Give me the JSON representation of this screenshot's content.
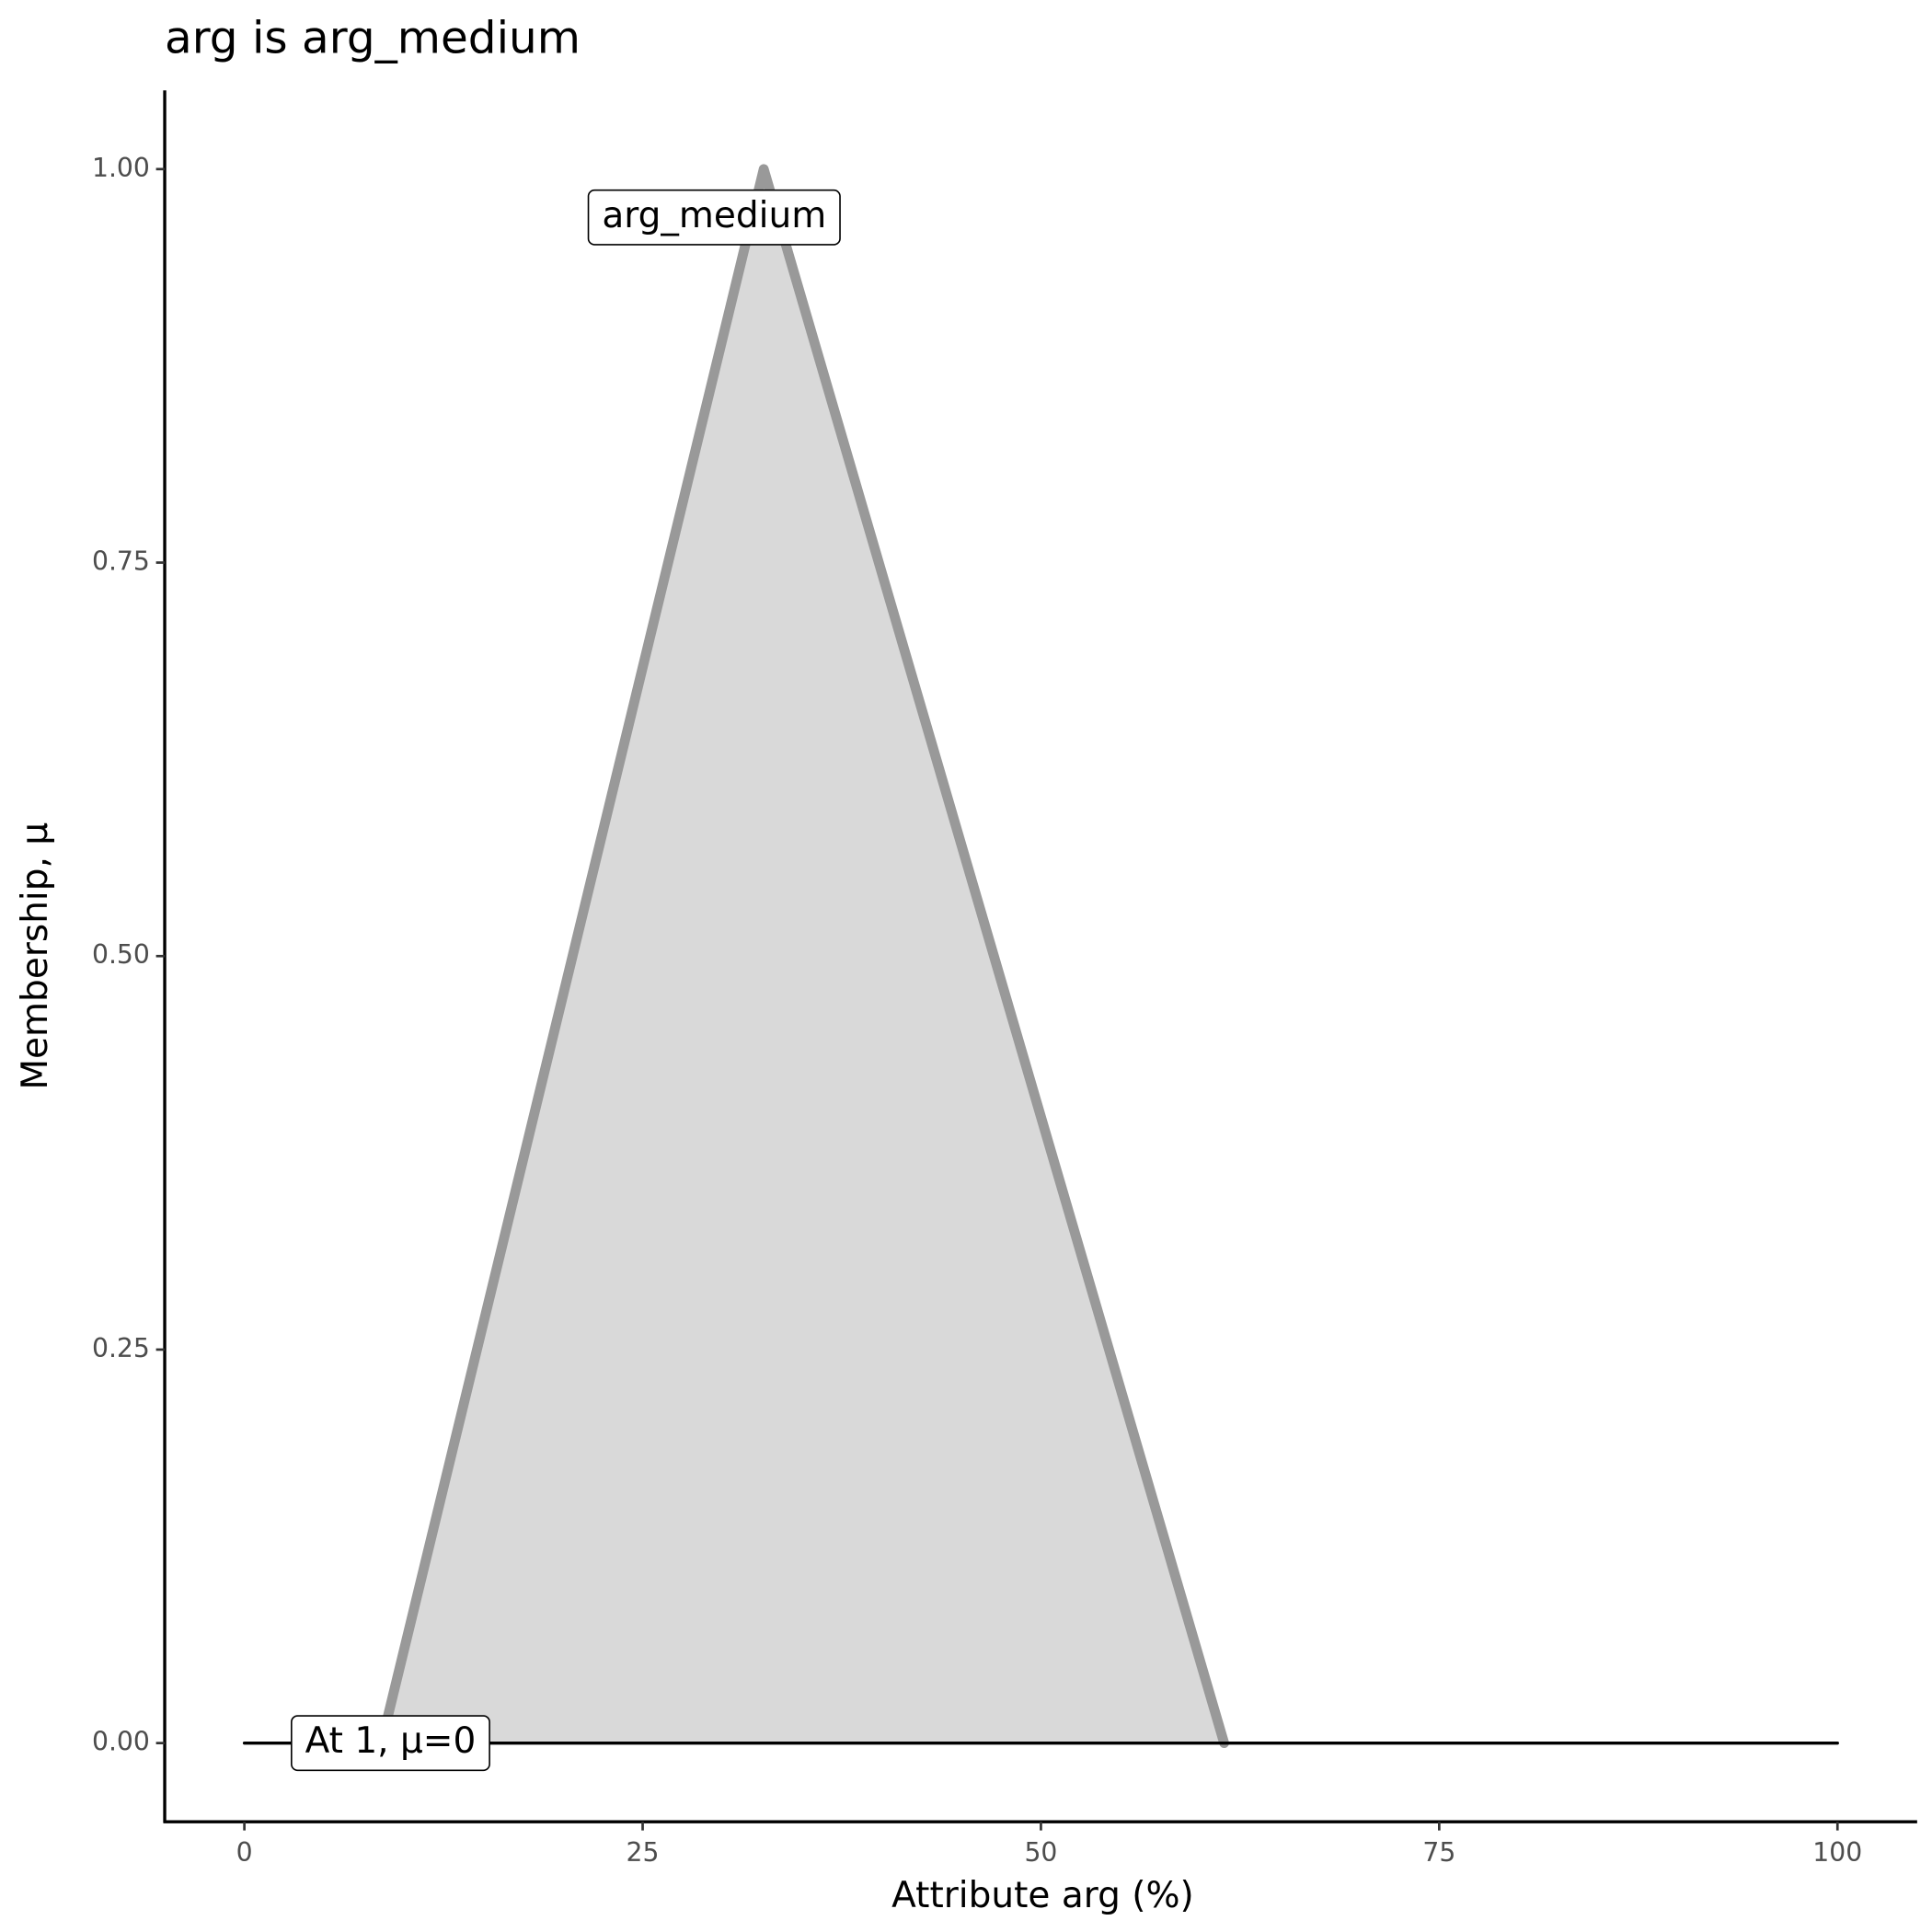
{
  "chart_data": {
    "type": "area",
    "title": "arg is arg_medium",
    "x_label": "Attribute arg (%)",
    "y_label": "Membership, μ",
    "xlim": [
      -5,
      105
    ],
    "ylim": [
      -0.05,
      1.05
    ],
    "xticks": [
      0,
      25,
      50,
      75,
      100
    ],
    "yticks": [
      {
        "value": 0,
        "label": "0.00"
      },
      {
        "value": 0.25,
        "label": "0.25"
      },
      {
        "value": 0.5,
        "label": "0.50"
      },
      {
        "value": 0.75,
        "label": "0.75"
      },
      {
        "value": 1,
        "label": "1.00"
      }
    ],
    "grid": false,
    "series": [
      {
        "name": "arg_medium",
        "color": "#999999",
        "fill": "#d9d9d9",
        "x": [
          8.6,
          32.6,
          61.5
        ],
        "values": [
          0,
          1,
          0
        ]
      },
      {
        "name": "At 1, μ=0",
        "color": "#000000",
        "x": [
          0,
          100
        ],
        "values": [
          0,
          0
        ]
      }
    ]
  }
}
